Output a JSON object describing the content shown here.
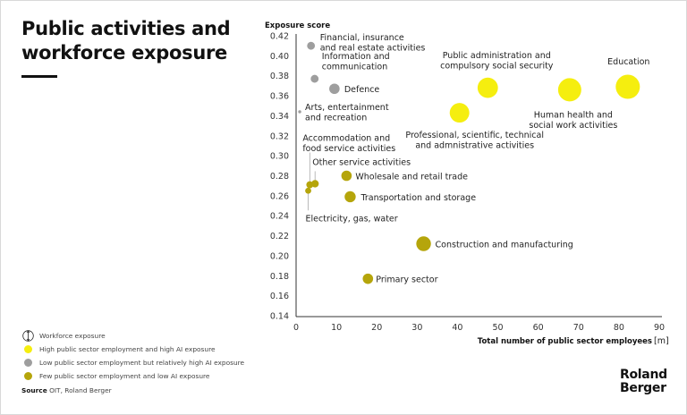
{
  "title_line1": "Public activities and",
  "title_line2": "workforce exposure",
  "legend": {
    "workforce": "Workforce exposure",
    "items": [
      {
        "label": "High public sector employment and high AI exposure",
        "color": "#f5ee0f"
      },
      {
        "label": "Low public sector employment but relatively high AI exposure",
        "color": "#9e9e9e"
      },
      {
        "label": "Few public sector employment and low AI exposure",
        "color": "#b5a50b"
      }
    ]
  },
  "source": {
    "label": "Source",
    "text": "OIT, Roland Berger"
  },
  "logo": {
    "line1": "Roland",
    "line2": "Berger"
  },
  "chart_data": {
    "type": "scatter",
    "subtype": "bubble",
    "title": "Public activities and workforce exposure",
    "xlabel": "Total number of public sector employees",
    "xlabel_unit": "[m]",
    "ylabel": "Exposure score",
    "xlim": [
      0,
      90
    ],
    "ylim": [
      0.14,
      0.42
    ],
    "xticks": [
      0,
      10,
      20,
      30,
      40,
      50,
      60,
      70,
      80,
      90
    ],
    "yticks": [
      0.42,
      0.4,
      0.38,
      0.36,
      0.34,
      0.32,
      0.3,
      0.28,
      0.26,
      0.24,
      0.22,
      0.2,
      0.18,
      0.16,
      0.14
    ],
    "grid": false,
    "legend_position": "bottom-left",
    "size_meaning": "Workforce exposure",
    "points": [
      {
        "name": "Financial, insurance and real estate activities",
        "lines": [
          "Financial, insurance",
          "and real estate activities"
        ],
        "x": 3.7,
        "y": 0.41,
        "size": 2.0,
        "group": "low-public-high-ai"
      },
      {
        "name": "Information and communication",
        "lines": [
          "Information and",
          "communication"
        ],
        "x": 4.6,
        "y": 0.377,
        "size": 2.0,
        "group": "low-public-high-ai"
      },
      {
        "name": "Defence",
        "lines": [
          "Defence"
        ],
        "x": 9.5,
        "y": 0.367,
        "size": 3.5,
        "group": "low-public-high-ai"
      },
      {
        "name": "Arts, entertainment and recreation",
        "lines": [
          "Arts, entertainment",
          "and recreation"
        ],
        "x": 0.9,
        "y": 0.344,
        "size": 0.3,
        "group": "low-public-high-ai"
      },
      {
        "name": "Public administration and compulsory social security",
        "lines": [
          "Public administration and",
          "compulsory social security"
        ],
        "x": 47.5,
        "y": 0.368,
        "size": 13.5,
        "group": "high-public-high-ai"
      },
      {
        "name": "Human health and social work activities",
        "lines": [
          "Human health and",
          "social work activities"
        ],
        "x": 67.8,
        "y": 0.366,
        "size": 17.5,
        "group": "high-public-high-ai"
      },
      {
        "name": "Education",
        "lines": [
          "Education"
        ],
        "x": 82.2,
        "y": 0.369,
        "size": 19.0,
        "group": "high-public-high-ai"
      },
      {
        "name": "Professional, scientific, technical and admnistrative activities",
        "lines": [
          "Professional, scientific, technical",
          "and admnistrative activities"
        ],
        "x": 40.5,
        "y": 0.343,
        "size": 12.5,
        "group": "high-public-high-ai"
      },
      {
        "name": "Accommodation and food service activities",
        "lines": [
          "Accommodation and",
          "food service activities"
        ],
        "x": 3.4,
        "y": 0.271,
        "size": 1.6,
        "group": "few-public-low-ai"
      },
      {
        "name": "Other service activities",
        "lines": [
          "Other service activities"
        ],
        "x": 4.7,
        "y": 0.272,
        "size": 1.8,
        "group": "few-public-low-ai"
      },
      {
        "name": "Electricity, gas, water",
        "lines": [
          "Electricity, gas, water"
        ],
        "x": 3.0,
        "y": 0.265,
        "size": 1.2,
        "group": "few-public-low-ai"
      },
      {
        "name": "Wholesale and retail trade",
        "lines": [
          "Wholesale and retail trade"
        ],
        "x": 12.5,
        "y": 0.28,
        "size": 3.5,
        "group": "few-public-low-ai"
      },
      {
        "name": "Transportation and storage",
        "lines": [
          "Transportation and storage"
        ],
        "x": 13.4,
        "y": 0.259,
        "size": 4.0,
        "group": "few-public-low-ai"
      },
      {
        "name": "Construction and manufacturing",
        "lines": [
          "Construction and manufacturing"
        ],
        "x": 31.6,
        "y": 0.212,
        "size": 7.0,
        "group": "few-public-low-ai"
      },
      {
        "name": "Primary sector",
        "lines": [
          "Primary sector"
        ],
        "x": 17.8,
        "y": 0.177,
        "size": 3.5,
        "group": "few-public-low-ai"
      }
    ],
    "group_colors": {
      "high-public-high-ai": "#f5ee0f",
      "low-public-high-ai": "#9e9e9e",
      "few-public-low-ai": "#b5a50b"
    }
  }
}
